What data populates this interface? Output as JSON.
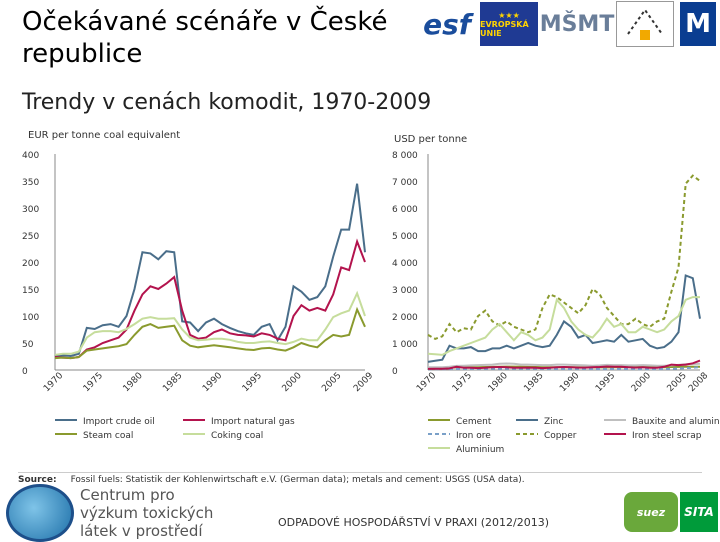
{
  "slide": {
    "title": "Očekávané scénáře v České republice",
    "subtitle": "Trendy v cenách komodit, 1970-2009"
  },
  "logos": {
    "esf": "esf",
    "eu": "EVROPSKÁ UNIE",
    "msmt": "MŠMT"
  },
  "source": {
    "label": "Source:",
    "text": "Fossil fuels: Statistik der Kohlenwirtschaft e.V. (German data); metals and cement: USGS (USA data)."
  },
  "footer": {
    "center_name": "Centrum pro výzkum toxických látek v prostředí",
    "course": "ODPADOVÉ HOSPODÁŘSTVÍ V PRAXI (2012/2013)",
    "suez": "suez",
    "sita": "SITA"
  },
  "colors": {
    "dark_blue": "#4a6e8a",
    "crimson": "#b3134d",
    "olive": "#8a9a2e",
    "light_green": "#c6dd9c",
    "gray": "#bfbfbf",
    "light_blue": "#7aa0c8"
  },
  "chart_data": [
    {
      "type": "line",
      "ylabel": "EUR per tonne coal equivalent",
      "ylim": [
        0,
        400
      ],
      "yticks": [
        "0",
        "50",
        "100",
        "150",
        "200",
        "250",
        "300",
        "350",
        "400"
      ],
      "xlim": [
        1970,
        2009
      ],
      "xticks": [
        "1970",
        "1975",
        "1980",
        "1985",
        "1990",
        "1995",
        "2000",
        "2005",
        "2009"
      ],
      "grid": false,
      "legend_position": "bottom",
      "series": [
        {
          "name": "Import crude oil",
          "color": "#4a6e8a",
          "x": [
            1970,
            1971,
            1972,
            1973,
            1974,
            1975,
            1976,
            1977,
            1978,
            1979,
            1980,
            1981,
            1982,
            1983,
            1984,
            1985,
            1986,
            1987,
            1988,
            1989,
            1990,
            1991,
            1992,
            1993,
            1994,
            1995,
            1996,
            1997,
            1998,
            1999,
            2000,
            2001,
            2002,
            2003,
            2004,
            2005,
            2006,
            2007,
            2008,
            2009
          ],
          "values": [
            25,
            27,
            26,
            30,
            78,
            76,
            83,
            85,
            80,
            100,
            150,
            218,
            216,
            205,
            220,
            218,
            90,
            88,
            72,
            88,
            95,
            85,
            78,
            72,
            68,
            65,
            80,
            85,
            55,
            80,
            155,
            145,
            130,
            135,
            155,
            210,
            260,
            260,
            345,
            218
          ]
        },
        {
          "name": "Import natural gas",
          "color": "#b3134d",
          "x": [
            1970,
            1971,
            1972,
            1973,
            1974,
            1975,
            1976,
            1977,
            1978,
            1979,
            1980,
            1981,
            1982,
            1983,
            1984,
            1985,
            1986,
            1987,
            1988,
            1989,
            1990,
            1991,
            1992,
            1993,
            1994,
            1995,
            1996,
            1997,
            1998,
            1999,
            2000,
            2001,
            2002,
            2003,
            2004,
            2005,
            2006,
            2007,
            2008,
            2009
          ],
          "values": [
            24,
            23,
            22,
            24,
            38,
            42,
            50,
            55,
            60,
            75,
            110,
            140,
            155,
            150,
            160,
            172,
            110,
            65,
            58,
            60,
            70,
            75,
            68,
            65,
            64,
            62,
            68,
            65,
            58,
            55,
            100,
            120,
            110,
            115,
            110,
            140,
            190,
            185,
            238,
            200
          ]
        },
        {
          "name": "Steam coal",
          "color": "#8a9a2e",
          "x": [
            1970,
            1971,
            1972,
            1973,
            1974,
            1975,
            1976,
            1977,
            1978,
            1979,
            1980,
            1981,
            1982,
            1983,
            1984,
            1985,
            1986,
            1987,
            1988,
            1989,
            1990,
            1991,
            1992,
            1993,
            1994,
            1995,
            1996,
            1997,
            1998,
            1999,
            2000,
            2001,
            2002,
            2003,
            2004,
            2005,
            2006,
            2007,
            2008,
            2009
          ],
          "values": [
            22,
            23,
            22,
            24,
            36,
            38,
            40,
            42,
            44,
            48,
            65,
            80,
            85,
            78,
            80,
            82,
            55,
            45,
            42,
            44,
            46,
            44,
            42,
            40,
            38,
            37,
            40,
            41,
            38,
            36,
            42,
            50,
            45,
            42,
            55,
            65,
            62,
            65,
            112,
            80
          ]
        },
        {
          "name": "Coking coal",
          "color": "#c6dd9c",
          "x": [
            1970,
            1971,
            1972,
            1973,
            1974,
            1975,
            1976,
            1977,
            1978,
            1979,
            1980,
            1981,
            1982,
            1983,
            1984,
            1985,
            1986,
            1987,
            1988,
            1989,
            1990,
            1991,
            1992,
            1993,
            1994,
            1995,
            1996,
            1997,
            1998,
            1999,
            2000,
            2001,
            2002,
            2003,
            2004,
            2005,
            2006,
            2007,
            2008,
            2009
          ],
          "values": [
            28,
            30,
            30,
            34,
            60,
            70,
            72,
            72,
            70,
            76,
            85,
            95,
            98,
            95,
            95,
            96,
            75,
            60,
            55,
            56,
            58,
            58,
            56,
            52,
            50,
            50,
            52,
            53,
            50,
            48,
            52,
            58,
            55,
            55,
            75,
            98,
            105,
            110,
            142,
            100
          ]
        }
      ]
    },
    {
      "type": "line",
      "ylabel": "USD per tonne",
      "ylim": [
        0,
        8000
      ],
      "yticks": [
        "0",
        "1 000",
        "2 000",
        "3 000",
        "4 000",
        "5 000",
        "6 000",
        "7 000",
        "8 000"
      ],
      "xlim": [
        1970,
        2008
      ],
      "xticks": [
        "1970",
        "1975",
        "1980",
        "1985",
        "1990",
        "1995",
        "2000",
        "2005",
        "2008"
      ],
      "grid": false,
      "legend_position": "bottom",
      "series": [
        {
          "name": "Cement",
          "color": "#8a9a2e",
          "x": [
            1970,
            1971,
            1972,
            1973,
            1974,
            1975,
            1976,
            1977,
            1978,
            1979,
            1980,
            1981,
            1982,
            1983,
            1984,
            1985,
            1986,
            1987,
            1988,
            1989,
            1990,
            1991,
            1992,
            1993,
            1994,
            1995,
            1996,
            1997,
            1998,
            1999,
            2000,
            2001,
            2002,
            2003,
            2004,
            2005,
            2006,
            2007,
            2008
          ],
          "values": [
            80,
            80,
            85,
            90,
            95,
            100,
            105,
            105,
            110,
            115,
            120,
            125,
            125,
            120,
            115,
            110,
            105,
            100,
            100,
            100,
            100,
            100,
            95,
            95,
            95,
            95,
            100,
            105,
            110,
            110,
            110,
            110,
            105,
            105,
            110,
            115,
            120,
            120,
            120
          ]
        },
        {
          "name": "Zinc",
          "color": "#4a6e8a",
          "x": [
            1970,
            1971,
            1972,
            1973,
            1974,
            1975,
            1976,
            1977,
            1978,
            1979,
            1980,
            1981,
            1982,
            1983,
            1984,
            1985,
            1986,
            1987,
            1988,
            1989,
            1990,
            1991,
            1992,
            1993,
            1994,
            1995,
            1996,
            1997,
            1998,
            1999,
            2000,
            2001,
            2002,
            2003,
            2004,
            2005,
            2006,
            2007,
            2008
          ],
          "values": [
            300,
            340,
            380,
            900,
            800,
            800,
            850,
            700,
            700,
            800,
            800,
            900,
            800,
            900,
            1000,
            900,
            850,
            900,
            1300,
            1800,
            1600,
            1200,
            1300,
            1000,
            1050,
            1100,
            1050,
            1300,
            1050,
            1100,
            1150,
            900,
            800,
            850,
            1050,
            1400,
            3500,
            3400,
            1900
          ]
        },
        {
          "name": "Bauxite and alumina",
          "color": "#bfbfbf",
          "x": [
            1970,
            1971,
            1972,
            1973,
            1974,
            1975,
            1976,
            1977,
            1978,
            1979,
            1980,
            1981,
            1982,
            1983,
            1984,
            1985,
            1986,
            1987,
            1988,
            1989,
            1990,
            1991,
            1992,
            1993,
            1994,
            1995,
            1996,
            1997,
            1998,
            1999,
            2000,
            2001,
            2002,
            2003,
            2004,
            2005,
            2006,
            2007,
            2008
          ],
          "values": [
            100,
            100,
            100,
            120,
            150,
            160,
            170,
            180,
            190,
            200,
            230,
            240,
            230,
            200,
            200,
            190,
            180,
            180,
            200,
            200,
            190,
            180,
            170,
            160,
            170,
            190,
            180,
            180,
            170,
            170,
            180,
            170,
            160,
            160,
            170,
            190,
            210,
            220,
            230
          ]
        },
        {
          "name": "Iron ore",
          "color": "#7aa0c8",
          "x": [
            1970,
            1971,
            1972,
            1973,
            1974,
            1975,
            1976,
            1977,
            1978,
            1979,
            1980,
            1981,
            1982,
            1983,
            1984,
            1985,
            1986,
            1987,
            1988,
            1989,
            1990,
            1991,
            1992,
            1993,
            1994,
            1995,
            1996,
            1997,
            1998,
            1999,
            2000,
            2001,
            2002,
            2003,
            2004,
            2005,
            2006,
            2007,
            2008
          ],
          "values": [
            30,
            32,
            32,
            34,
            38,
            40,
            42,
            42,
            42,
            44,
            46,
            48,
            50,
            48,
            46,
            44,
            42,
            40,
            38,
            38,
            40,
            40,
            38,
            36,
            34,
            34,
            36,
            36,
            36,
            34,
            34,
            34,
            34,
            36,
            40,
            55,
            70,
            80,
            110
          ]
        },
        {
          "name": "Copper",
          "color": "#8a9a2e",
          "x": [
            1970,
            1971,
            1972,
            1973,
            1974,
            1975,
            1976,
            1977,
            1978,
            1979,
            1980,
            1981,
            1982,
            1983,
            1984,
            1985,
            1986,
            1987,
            1988,
            1989,
            1990,
            1991,
            1992,
            1993,
            1994,
            1995,
            1996,
            1997,
            1998,
            1999,
            2000,
            2001,
            2002,
            2003,
            2004,
            2005,
            2006,
            2007,
            2008
          ],
          "values": [
            1300,
            1150,
            1250,
            1700,
            1400,
            1550,
            1500,
            2000,
            2200,
            1800,
            1650,
            1800,
            1600,
            1500,
            1400,
            1500,
            2300,
            2800,
            2700,
            2500,
            2300,
            2100,
            2400,
            3000,
            2800,
            2300,
            2000,
            1700,
            1700,
            1900,
            1700,
            1600,
            1800,
            1900,
            2900,
            3800,
            6900,
            7200,
            7000
          ]
        },
        {
          "name": "Iron steel scrap",
          "color": "#b3134d",
          "x": [
            1970,
            1971,
            1972,
            1973,
            1974,
            1975,
            1976,
            1977,
            1978,
            1979,
            1980,
            1981,
            1982,
            1983,
            1984,
            1985,
            1986,
            1987,
            1988,
            1989,
            1990,
            1991,
            1992,
            1993,
            1994,
            1995,
            1996,
            1997,
            1998,
            1999,
            2000,
            2001,
            2002,
            2003,
            2004,
            2005,
            2006,
            2007,
            2008
          ],
          "values": [
            40,
            45,
            45,
            60,
            120,
            80,
            80,
            70,
            80,
            100,
            110,
            100,
            80,
            80,
            90,
            80,
            70,
            80,
            100,
            110,
            100,
            90,
            90,
            100,
            110,
            130,
            120,
            120,
            100,
            90,
            100,
            80,
            80,
            120,
            200,
            180,
            200,
            250,
            350
          ]
        },
        {
          "name": "Aluminium",
          "color": "#c6dd9c",
          "x": [
            1970,
            1971,
            1972,
            1973,
            1974,
            1975,
            1976,
            1977,
            1978,
            1979,
            1980,
            1981,
            1982,
            1983,
            1984,
            1985,
            1986,
            1987,
            1988,
            1989,
            1990,
            1991,
            1992,
            1993,
            1994,
            1995,
            1996,
            1997,
            1998,
            1999,
            2000,
            2001,
            2002,
            2003,
            2004,
            2005,
            2006,
            2007,
            2008
          ],
          "values": [
            600,
            580,
            560,
            700,
            800,
            900,
            1000,
            1100,
            1200,
            1500,
            1700,
            1400,
            1100,
            1400,
            1300,
            1100,
            1200,
            1500,
            2600,
            2300,
            1800,
            1500,
            1300,
            1200,
            1500,
            1900,
            1600,
            1700,
            1400,
            1400,
            1600,
            1500,
            1400,
            1500,
            1800,
            2000,
            2600,
            2700,
            2700
          ]
        }
      ]
    }
  ]
}
